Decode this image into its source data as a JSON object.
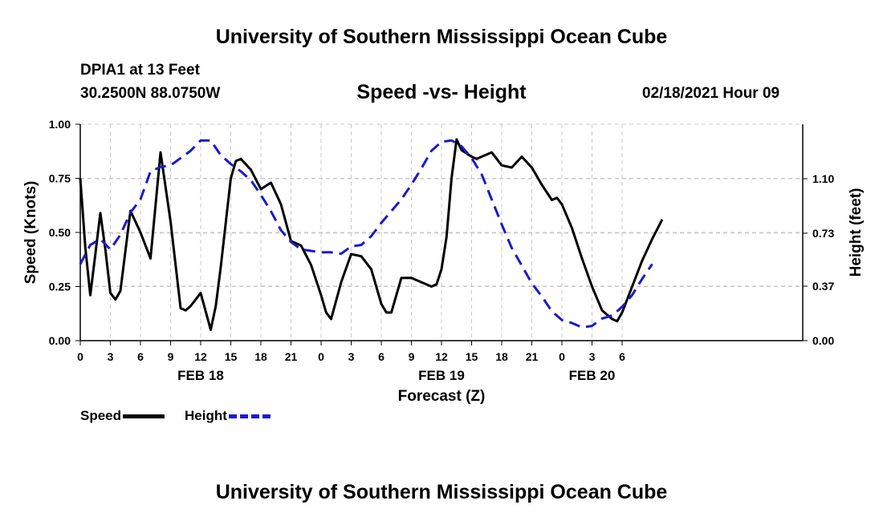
{
  "header": {
    "title": "University of Southern Mississippi Ocean Cube",
    "station": "DPIA1 at 13 Feet",
    "coords": "30.2500N 88.0750W",
    "chart_title": "Speed -vs- Height",
    "datetime": "02/18/2021 Hour 09"
  },
  "footer": {
    "title": "University of Southern Mississippi Ocean Cube"
  },
  "legend": {
    "speed_label": "Speed",
    "height_label": "Height",
    "speed_color": "#000000",
    "height_color": "#1a1acd"
  },
  "chart_data": {
    "type": "line",
    "title": "Speed -vs- Height",
    "xlabel": "Forecast (Z)",
    "ylabel": "Speed (Knots)",
    "y2label": "Height (feet)",
    "x_range_hours": [
      0,
      72
    ],
    "ylim": [
      0,
      1.0
    ],
    "y2lim": [
      0,
      1.47
    ],
    "grid": true,
    "legend_position": "bottom-left",
    "x_ticks": [
      {
        "h": 0,
        "label": "0"
      },
      {
        "h": 3,
        "label": "3"
      },
      {
        "h": 6,
        "label": "6"
      },
      {
        "h": 9,
        "label": "9"
      },
      {
        "h": 12,
        "label": "12"
      },
      {
        "h": 15,
        "label": "15"
      },
      {
        "h": 18,
        "label": "18"
      },
      {
        "h": 21,
        "label": "21"
      },
      {
        "h": 24,
        "label": "0"
      },
      {
        "h": 27,
        "label": "3"
      },
      {
        "h": 30,
        "label": "6"
      },
      {
        "h": 33,
        "label": "9"
      },
      {
        "h": 36,
        "label": "12"
      },
      {
        "h": 39,
        "label": "15"
      },
      {
        "h": 42,
        "label": "18"
      },
      {
        "h": 45,
        "label": "21"
      },
      {
        "h": 48,
        "label": "0"
      },
      {
        "h": 51,
        "label": "3"
      },
      {
        "h": 54,
        "label": "6"
      }
    ],
    "date_labels": [
      {
        "h": 12,
        "label": "FEB 18"
      },
      {
        "h": 36,
        "label": "FEB 19"
      },
      {
        "h": 51,
        "label": "FEB 20"
      }
    ],
    "y_ticks": [
      {
        "v": 0.0,
        "label": "0.00"
      },
      {
        "v": 0.25,
        "label": "0.25"
      },
      {
        "v": 0.5,
        "label": "0.50"
      },
      {
        "v": 0.75,
        "label": "0.75"
      },
      {
        "v": 1.0,
        "label": "1.00"
      }
    ],
    "y2_ticks": [
      {
        "v": 0.0,
        "label": "0.00"
      },
      {
        "v": 0.37,
        "label": "0.37"
      },
      {
        "v": 0.73,
        "label": "0.73"
      },
      {
        "v": 1.1,
        "label": "1.10"
      }
    ],
    "series": [
      {
        "name": "Speed",
        "axis": "left",
        "points": [
          [
            0,
            0.75
          ],
          [
            0.5,
            0.43
          ],
          [
            1,
            0.21
          ],
          [
            1.5,
            0.4
          ],
          [
            2,
            0.59
          ],
          [
            2.5,
            0.42
          ],
          [
            3,
            0.22
          ],
          [
            3.5,
            0.19
          ],
          [
            4,
            0.23
          ],
          [
            5,
            0.6
          ],
          [
            6,
            0.5
          ],
          [
            7,
            0.38
          ],
          [
            8,
            0.87
          ],
          [
            9,
            0.55
          ],
          [
            10,
            0.15
          ],
          [
            10.5,
            0.14
          ],
          [
            11,
            0.16
          ],
          [
            12,
            0.22
          ],
          [
            13,
            0.05
          ],
          [
            13.5,
            0.16
          ],
          [
            14,
            0.34
          ],
          [
            15,
            0.75
          ],
          [
            15.5,
            0.83
          ],
          [
            16,
            0.84
          ],
          [
            17,
            0.79
          ],
          [
            18,
            0.7
          ],
          [
            19,
            0.73
          ],
          [
            20,
            0.63
          ],
          [
            21,
            0.46
          ],
          [
            22,
            0.44
          ],
          [
            23,
            0.35
          ],
          [
            24,
            0.21
          ],
          [
            24.5,
            0.13
          ],
          [
            25,
            0.1
          ],
          [
            26,
            0.27
          ],
          [
            27,
            0.4
          ],
          [
            28,
            0.39
          ],
          [
            29,
            0.33
          ],
          [
            30,
            0.17
          ],
          [
            30.5,
            0.13
          ],
          [
            31,
            0.13
          ],
          [
            32,
            0.29
          ],
          [
            33,
            0.29
          ],
          [
            34,
            0.27
          ],
          [
            35,
            0.25
          ],
          [
            35.5,
            0.26
          ],
          [
            36,
            0.33
          ],
          [
            36.5,
            0.48
          ],
          [
            37,
            0.75
          ],
          [
            37.5,
            0.93
          ],
          [
            38,
            0.88
          ],
          [
            39,
            0.85
          ],
          [
            39.5,
            0.84
          ],
          [
            40,
            0.85
          ],
          [
            41,
            0.87
          ],
          [
            42,
            0.81
          ],
          [
            43,
            0.8
          ],
          [
            44,
            0.85
          ],
          [
            45,
            0.8
          ],
          [
            46,
            0.72
          ],
          [
            47,
            0.65
          ],
          [
            47.5,
            0.66
          ],
          [
            48,
            0.63
          ],
          [
            49,
            0.52
          ],
          [
            50,
            0.38
          ],
          [
            51,
            0.25
          ],
          [
            52,
            0.14
          ],
          [
            53,
            0.1
          ],
          [
            53.5,
            0.09
          ],
          [
            54,
            0.13
          ],
          [
            55,
            0.25
          ],
          [
            56,
            0.37
          ],
          [
            57,
            0.47
          ],
          [
            58,
            0.56
          ]
        ]
      },
      {
        "name": "Height",
        "axis": "right",
        "points": [
          [
            0,
            0.52
          ],
          [
            1,
            0.65
          ],
          [
            2,
            0.69
          ],
          [
            3,
            0.62
          ],
          [
            4,
            0.72
          ],
          [
            5,
            0.87
          ],
          [
            6,
            0.96
          ],
          [
            7,
            1.15
          ],
          [
            8,
            1.18
          ],
          [
            9,
            1.19
          ],
          [
            10,
            1.24
          ],
          [
            11,
            1.29
          ],
          [
            12,
            1.36
          ],
          [
            13,
            1.36
          ],
          [
            14,
            1.26
          ],
          [
            15,
            1.2
          ],
          [
            16,
            1.15
          ],
          [
            17,
            1.09
          ],
          [
            18,
            0.99
          ],
          [
            19,
            0.88
          ],
          [
            20,
            0.75
          ],
          [
            21,
            0.67
          ],
          [
            22,
            0.62
          ],
          [
            23,
            0.61
          ],
          [
            24,
            0.6
          ],
          [
            25,
            0.6
          ],
          [
            26,
            0.59
          ],
          [
            27,
            0.64
          ],
          [
            28,
            0.65
          ],
          [
            29,
            0.71
          ],
          [
            30,
            0.8
          ],
          [
            31,
            0.88
          ],
          [
            32,
            0.96
          ],
          [
            33,
            1.06
          ],
          [
            34,
            1.17
          ],
          [
            35,
            1.29
          ],
          [
            36,
            1.35
          ],
          [
            37,
            1.36
          ],
          [
            38,
            1.32
          ],
          [
            39,
            1.24
          ],
          [
            40,
            1.13
          ],
          [
            41,
            0.96
          ],
          [
            42,
            0.79
          ],
          [
            43,
            0.63
          ],
          [
            44,
            0.51
          ],
          [
            45,
            0.39
          ],
          [
            46,
            0.3
          ],
          [
            47,
            0.2
          ],
          [
            48,
            0.14
          ],
          [
            49,
            0.12
          ],
          [
            50,
            0.09
          ],
          [
            51,
            0.1
          ],
          [
            52,
            0.15
          ],
          [
            53,
            0.17
          ],
          [
            54,
            0.23
          ],
          [
            55,
            0.31
          ],
          [
            56,
            0.42
          ],
          [
            57,
            0.52
          ]
        ]
      }
    ]
  }
}
